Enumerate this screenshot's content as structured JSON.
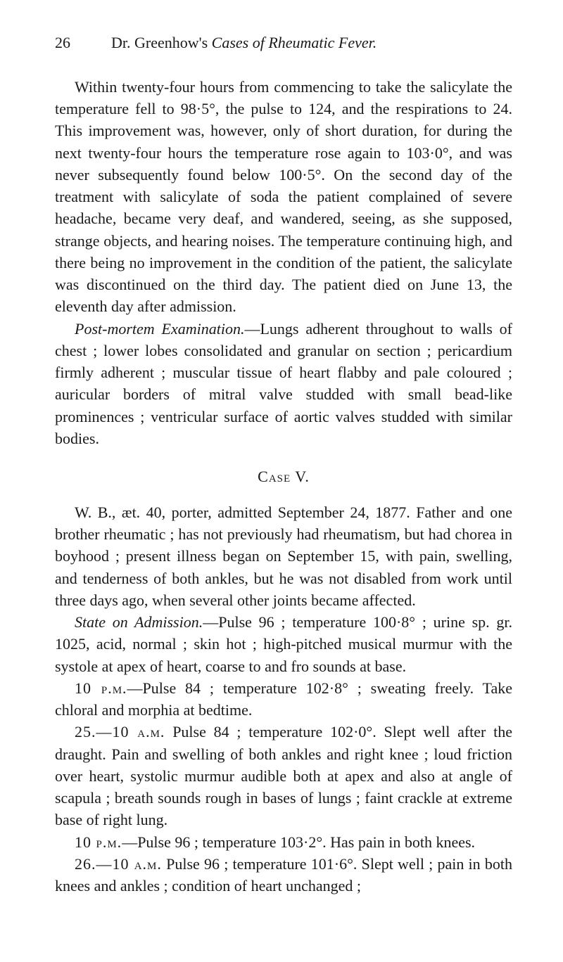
{
  "header": {
    "page_number": "26",
    "title_prefix": "Dr. Greenhow's ",
    "title_italic": "Cases of Rheumatic Fever."
  },
  "paragraphs": {
    "p1": "Within twenty-four hours from commencing to take the salicylate the temperature fell to 98·5°, the pulse to 124, and the respirations to 24. This improvement was, how­ever, only of short duration, for during the next twenty-four hours the temperature rose again to 103·0°, and was never subsequently found below 100·5°. On the second day of the treatment with salicylate of soda the patient complained of severe headache, became very deaf, and wandered, seeing, as she supposed, strange objects, and hearing noises. The tem­perature continuing high, and there being no improvement in the condition of the patient, the salicylate was discontinued on the third day. The patient died on June 13, the eleventh day after admission.",
    "p2_italic": "Post-mortem Examination.",
    "p2_rest": "—Lungs adherent throughout to walls of chest ; lower lobes consolidated and granular on section ; pericardium firmly adherent ; muscular tissue of heart flabby and pale coloured ; auricular borders of mitral valve studded with small bead-like prominences ; ventricular surface of aortic valves studded with similar bodies.",
    "case_title": "Case V.",
    "p3": "W. B., æt. 40, porter, admitted September 24, 1877. Father and one brother rheumatic ; has not previously had rheumatism, but had chorea in boyhood ; present illness began on September 15, with pain, swelling, and tenderness of both ankles, but he was not disabled from work until three days ago, when several other joints became affected.",
    "p4_italic": "State on Admission.",
    "p4_rest": "—Pulse 96 ; temperature 100·8° ; urine sp. gr. 1025, acid, normal ; skin hot ; high-pitched musical murmur with the systole at apex of heart, coarse to and fro sounds at base.",
    "p5_time": "10 p.m.",
    "p5_rest": "—Pulse 84 ; temperature 102·8° ; sweating freely. Take chloral and morphia at bedtime.",
    "p6_time": "25.—10 a.m.",
    "p6_rest": "   Pulse 84 ; temperature 102·0°. Slept well after the draught. Pain and swelling of both ankles and right knee ; loud friction over heart, systolic murmur audible both at apex and also at angle of scapula ; breath sounds rough in bases of lungs ; faint crackle at extreme base of right lung.",
    "p7_time": "10 p.m.",
    "p7_rest": "—Pulse 96 ; temperature 103·2°. Has pain in both knees.",
    "p8_time": "26.—10 a.m.",
    "p8_rest": "   Pulse 96 ; temperature 101·6°. Slept well ; pain in both knees and ankles ; condition of heart unchanged ;"
  }
}
